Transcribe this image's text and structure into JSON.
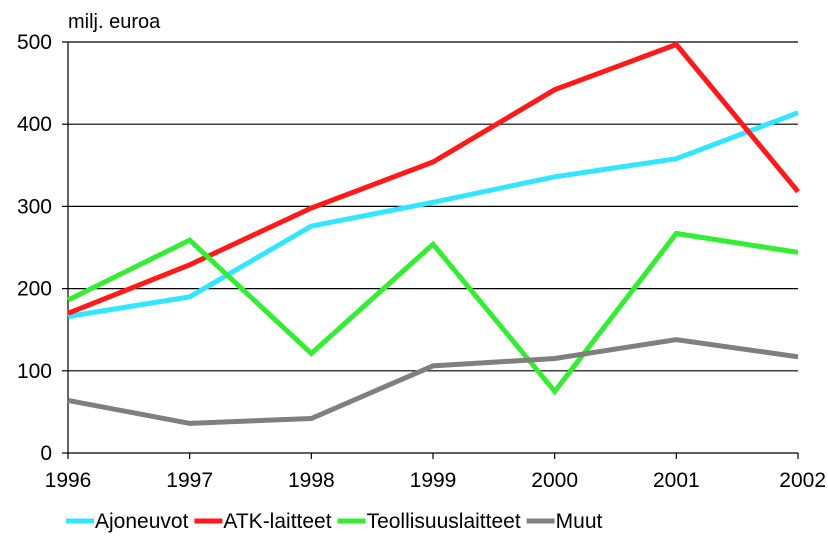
{
  "chart_data": {
    "type": "line",
    "ylabel": "milj. euroa",
    "ylim": [
      0,
      500
    ],
    "yticks": [
      0,
      100,
      200,
      300,
      400,
      500
    ],
    "x": [
      "1996",
      "1997",
      "1998",
      "1999",
      "2000",
      "2001",
      "2002"
    ],
    "grid": true,
    "legend_position": "bottom",
    "series": [
      {
        "name": "Ajoneuvot",
        "color": "#33e6ff",
        "values": [
          166,
          190,
          276,
          305,
          336,
          358,
          414
        ]
      },
      {
        "name": "ATK-laitteet",
        "color": "#ff1a1a",
        "values": [
          170,
          229,
          298,
          354,
          442,
          497,
          318
        ]
      },
      {
        "name": "Teollisuuslaitteet",
        "color": "#33ee33",
        "values": [
          186,
          259,
          121,
          254,
          75,
          267,
          244
        ]
      },
      {
        "name": "Muut",
        "color": "#7f7f7f",
        "values": [
          64,
          36,
          42,
          106,
          115,
          138,
          117
        ]
      }
    ]
  }
}
